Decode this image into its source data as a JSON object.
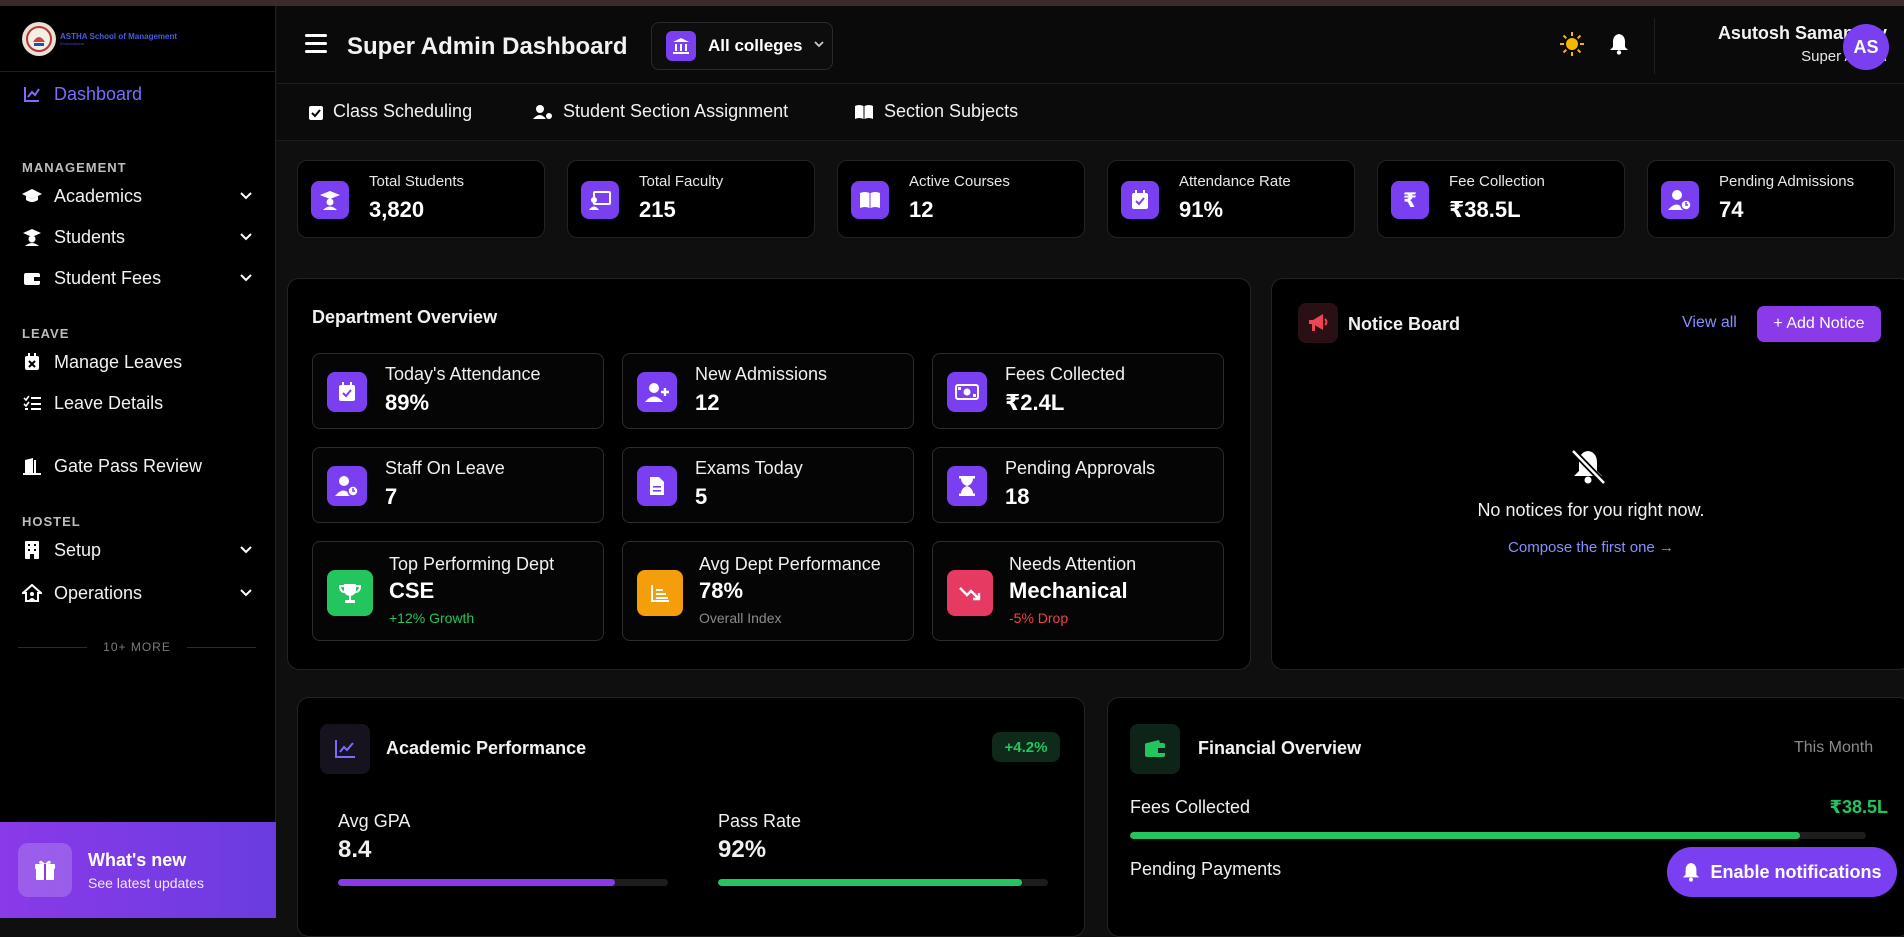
{
  "app": {
    "logo_text": "ASTHA School of Management",
    "logo_sub": "Bhubaneswar",
    "page_title": "Super Admin Dashboard",
    "college_filter": "All colleges"
  },
  "user": {
    "name": "Asutosh Samantray",
    "role": "Super Admin",
    "initials": "AS"
  },
  "sidebar": {
    "dashboard": "Dashboard",
    "section_management": "MANAGEMENT",
    "academics": "Academics",
    "students": "Students",
    "student_fees": "Student Fees",
    "section_leave": "LEAVE",
    "manage_leaves": "Manage Leaves",
    "leave_details": "Leave Details",
    "gate_pass": "Gate Pass Review",
    "section_hostel": "HOSTEL",
    "setup": "Setup",
    "operations": "Operations",
    "more": "10+ MORE",
    "whats_new_title": "What's new",
    "whats_new_sub": "See latest updates"
  },
  "subtabs": [
    "Class Scheduling",
    "Student Section Assignment",
    "Section Subjects"
  ],
  "stats": [
    {
      "label": "Total Students",
      "value": "3,820",
      "icon": "graduate-icon"
    },
    {
      "label": "Total Faculty",
      "value": "215",
      "icon": "teacher-icon"
    },
    {
      "label": "Active Courses",
      "value": "12",
      "icon": "book-icon"
    },
    {
      "label": "Attendance Rate",
      "value": "91%",
      "icon": "calendar-check-icon"
    },
    {
      "label": "Fee Collection",
      "value": "₹38.5L",
      "icon": "rupee-icon"
    },
    {
      "label": "Pending Admissions",
      "value": "74",
      "icon": "user-clock-icon"
    }
  ],
  "department": {
    "title": "Department Overview",
    "cards": [
      {
        "label": "Today's Attendance",
        "value": "89%"
      },
      {
        "label": "New Admissions",
        "value": "12"
      },
      {
        "label": "Fees Collected",
        "value": "₹2.4L"
      },
      {
        "label": "Staff On Leave",
        "value": "7"
      },
      {
        "label": "Exams Today",
        "value": "5"
      },
      {
        "label": "Pending Approvals",
        "value": "18"
      }
    ],
    "top": {
      "label": "Top Performing Dept",
      "value": "CSE",
      "note": "+12% Growth"
    },
    "avg": {
      "label": "Avg Dept Performance",
      "value": "78%",
      "note": "Overall Index"
    },
    "attention": {
      "label": "Needs Attention",
      "value": "Mechanical",
      "note": "-5% Drop"
    }
  },
  "notice": {
    "title": "Notice Board",
    "view_all": "View all",
    "add": "+ Add Notice",
    "empty": "No notices for you right now.",
    "compose": "Compose the first one →"
  },
  "academic": {
    "title": "Academic Performance",
    "badge": "+4.2%",
    "gpa_label": "Avg GPA",
    "gpa_value": "8.4",
    "gpa_progress": 0.84,
    "pass_label": "Pass Rate",
    "pass_value": "92%",
    "pass_progress": 0.92
  },
  "financial": {
    "title": "Financial Overview",
    "period": "This Month",
    "fees_label": "Fees Collected",
    "fees_value": "₹38.5L",
    "fees_progress": 0.91,
    "pending_label": "Pending Payments"
  },
  "enable_notifications": "Enable notifications",
  "colors": {
    "accent": "#7b3ff2",
    "green": "#22c55e",
    "red": "#ef4444",
    "link": "#8a8dff"
  }
}
